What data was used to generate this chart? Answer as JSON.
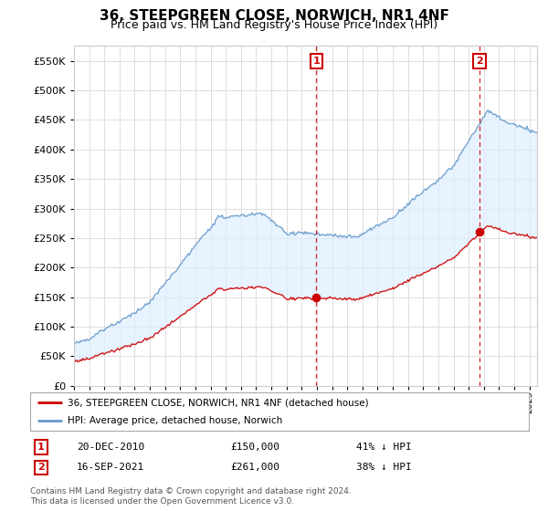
{
  "title": "36, STEEPGREEN CLOSE, NORWICH, NR1 4NF",
  "subtitle": "Price paid vs. HM Land Registry's House Price Index (HPI)",
  "ylim": [
    0,
    575000
  ],
  "yticks": [
    0,
    50000,
    100000,
    150000,
    200000,
    250000,
    300000,
    350000,
    400000,
    450000,
    500000,
    550000
  ],
  "hpi_color": "#6699cc",
  "hpi_fill_color": "#ddeeff",
  "price_color": "#cc0000",
  "grid_color": "#dddddd",
  "background_color": "#ffffff",
  "legend_label_price": "36, STEEPGREEN CLOSE, NORWICH, NR1 4NF (detached house)",
  "legend_label_hpi": "HPI: Average price, detached house, Norwich",
  "sale1_date": "20-DEC-2010",
  "sale1_price": "£150,000",
  "sale1_pct": "41% ↓ HPI",
  "sale1_year": 2010.97,
  "sale1_value": 150000,
  "sale2_date": "16-SEP-2021",
  "sale2_price": "£261,000",
  "sale2_pct": "38% ↓ HPI",
  "sale2_year": 2021.71,
  "sale2_value": 261000,
  "footnote_line1": "Contains HM Land Registry data © Crown copyright and database right 2024.",
  "footnote_line2": "This data is licensed under the Open Government Licence v3.0.",
  "xmin": 1995,
  "xmax": 2025.5
}
